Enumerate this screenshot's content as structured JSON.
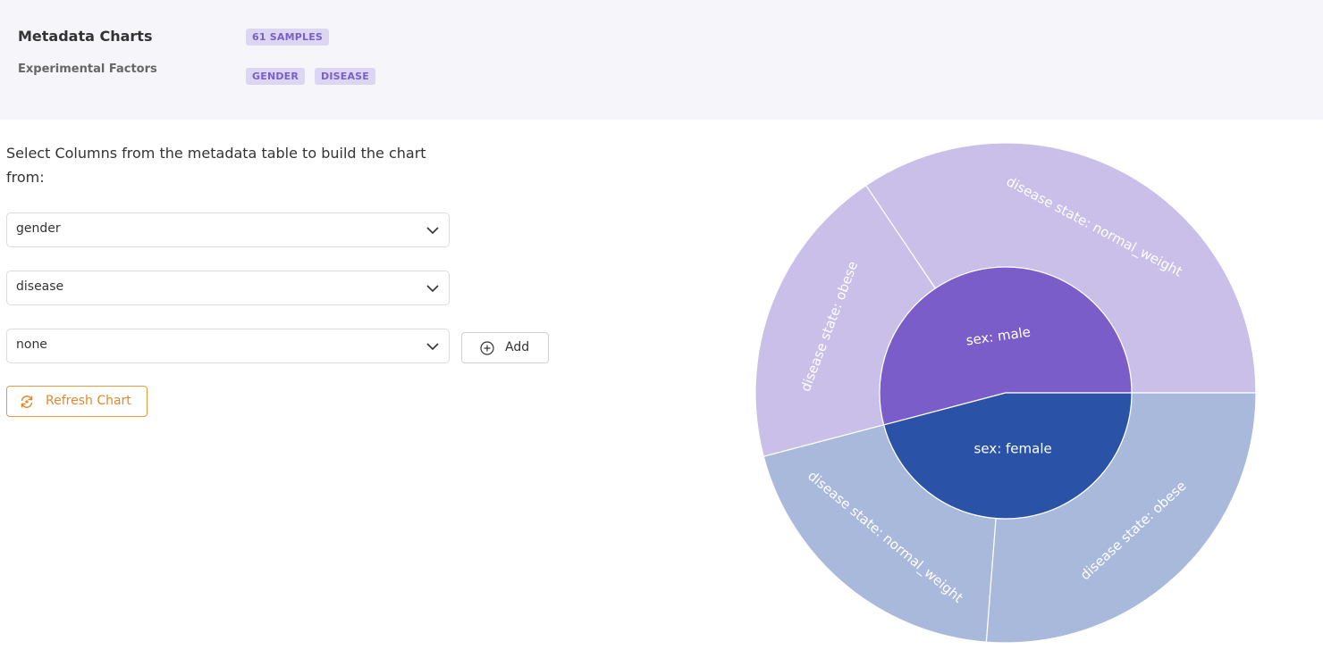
{
  "header": {
    "title": "Metadata Charts",
    "samples_badge": "61 SAMPLES",
    "factors_label": "Experimental Factors",
    "factors": [
      "GENDER",
      "DISEASE"
    ]
  },
  "controls": {
    "instructions": "Select Columns from the metadata table to build the chart from:",
    "selects": [
      "gender",
      "disease",
      "none"
    ],
    "add_label": "Add",
    "refresh_label": "Refresh Chart"
  },
  "colors": {
    "accent": "#7a5fc9",
    "badge_bg": "#dcd6f3",
    "refresh": "#e0892a",
    "male": "#7a5dc8",
    "male_light": "#c9bfe9",
    "female": "#2a53a8",
    "female_light": "#a9b9db"
  },
  "chart_data": {
    "type": "sunburst",
    "inner": [
      {
        "label": "sex: male",
        "value": 33
      },
      {
        "label": "sex: female",
        "value": 28
      }
    ],
    "outer": [
      {
        "parent": "sex: male",
        "label": "disease state: normal_weight",
        "value": 21
      },
      {
        "parent": "sex: male",
        "label": "disease state: obese",
        "value": 12
      },
      {
        "parent": "sex: female",
        "label": "disease state: normal_weight",
        "value": 12
      },
      {
        "parent": "sex: female",
        "label": "disease state: obese",
        "value": 16
      }
    ]
  }
}
